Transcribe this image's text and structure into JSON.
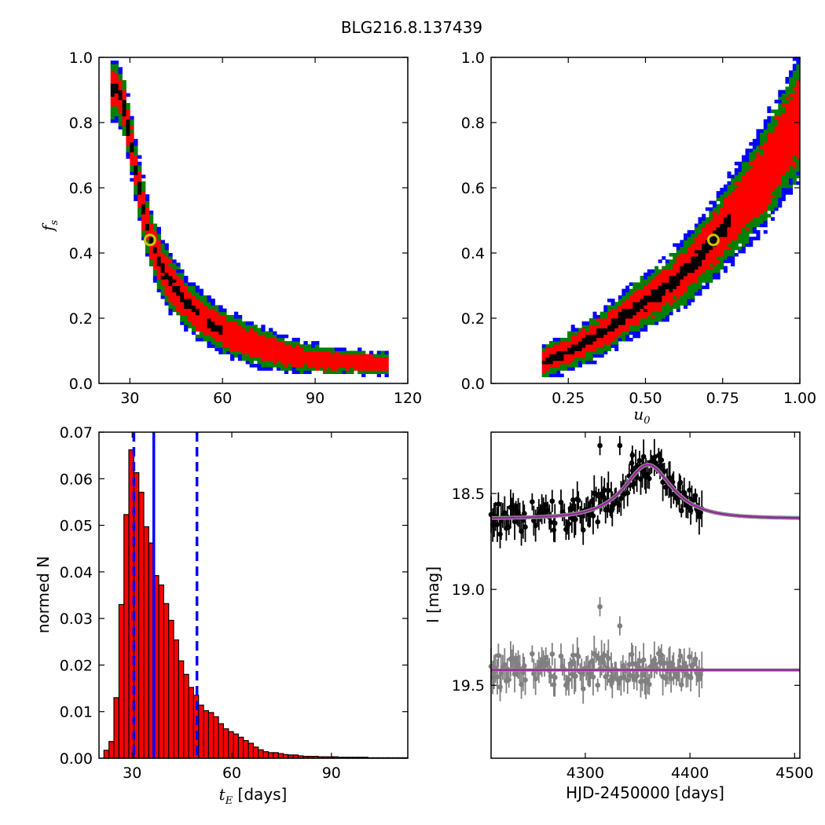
{
  "figure": {
    "title": "BLG216.8.137439"
  },
  "chart_data": [
    {
      "id": "density_tE_fs",
      "type": "heatmap",
      "xlim": [
        20,
        120
      ],
      "ylim": [
        0.0,
        1.0
      ],
      "xticks": [
        "30",
        "60",
        "90",
        "120"
      ],
      "xtick_values": [
        30,
        60,
        90,
        120
      ],
      "yticks": [
        "0.0",
        "0.2",
        "0.4",
        "0.6",
        "0.8",
        "1.0"
      ],
      "ylabel": {
        "var": "f",
        "sub": "s"
      },
      "color_levels": [
        "#0000ff",
        "#008000",
        "#ff0000",
        "#000000"
      ],
      "best_fit": {
        "x": 36.5,
        "y": 0.44
      },
      "ridge": [
        [
          26,
          0.9
        ],
        [
          28,
          0.85
        ],
        [
          30,
          0.76
        ],
        [
          32,
          0.65
        ],
        [
          34,
          0.55
        ],
        [
          36,
          0.47
        ],
        [
          38,
          0.41
        ],
        [
          40,
          0.36
        ],
        [
          44,
          0.3
        ],
        [
          48,
          0.25
        ],
        [
          54,
          0.2
        ],
        [
          60,
          0.16
        ],
        [
          70,
          0.12
        ],
        [
          80,
          0.09
        ],
        [
          95,
          0.07
        ],
        [
          112,
          0.06
        ]
      ]
    },
    {
      "id": "density_u0_fs",
      "type": "heatmap",
      "xlim": [
        0.0,
        1.0
      ],
      "ylim": [
        0.0,
        1.0
      ],
      "xticks": [
        "0.25",
        "0.50",
        "0.75",
        "1.00"
      ],
      "xtick_values": [
        0.25,
        0.5,
        0.75,
        1.0
      ],
      "yticks": [
        "0.0",
        "0.2",
        "0.4",
        "0.6",
        "0.8",
        "1.0"
      ],
      "xlabel": {
        "var": "u",
        "sub": "0"
      },
      "color_levels": [
        "#0000ff",
        "#008000",
        "#ff0000",
        "#000000"
      ],
      "best_fit": {
        "x": 0.72,
        "y": 0.44
      },
      "ridge": [
        [
          0.17,
          0.065
        ],
        [
          0.25,
          0.1
        ],
        [
          0.35,
          0.15
        ],
        [
          0.45,
          0.22
        ],
        [
          0.55,
          0.28
        ],
        [
          0.65,
          0.36
        ],
        [
          0.72,
          0.44
        ],
        [
          0.8,
          0.53
        ],
        [
          0.88,
          0.63
        ],
        [
          0.95,
          0.74
        ],
        [
          1.0,
          0.82
        ]
      ]
    },
    {
      "id": "tE_histogram",
      "type": "bar",
      "xlim": [
        20,
        113
      ],
      "ylim": [
        0.0,
        0.07
      ],
      "xticks": [
        "30",
        "60",
        "90"
      ],
      "xtick_values": [
        30,
        60,
        90
      ],
      "yticks": [
        "0.00",
        "0.01",
        "0.02",
        "0.03",
        "0.04",
        "0.05",
        "0.06",
        "0.07"
      ],
      "ylabel": "normed N",
      "xlabel": {
        "var": "t",
        "sub": "E",
        "unit": " [days]"
      },
      "bin_start": 21.5,
      "bin_width": 1.5,
      "values": [
        0.0017,
        0.0036,
        0.013,
        0.033,
        0.0523,
        0.0662,
        0.0613,
        0.0571,
        0.0497,
        0.0462,
        0.0392,
        0.0372,
        0.0332,
        0.0296,
        0.0254,
        0.0209,
        0.018,
        0.0152,
        0.0135,
        0.0114,
        0.0102,
        0.0098,
        0.0089,
        0.0074,
        0.0063,
        0.0057,
        0.0052,
        0.0045,
        0.0038,
        0.0032,
        0.0024,
        0.0018,
        0.0014,
        0.0012,
        0.0012,
        0.001,
        0.0008,
        0.0007,
        0.0007,
        0.0005,
        0.0004,
        0.0004,
        0.0004,
        0.0003,
        0.0003,
        0.0003,
        0.0003,
        0.0002,
        0.0002,
        0.0002,
        0.0002,
        0.0002,
        0.0002,
        0.0001,
        0.0001,
        0.0001,
        0.0001,
        0.0001,
        0.0001,
        0.0001,
        0.0001
      ],
      "bar_color": "#ff0000",
      "median_line": 36.5,
      "percentile_lines": [
        30.5,
        49.5
      ],
      "line_color": "#0000ff"
    },
    {
      "id": "light_curve",
      "type": "scatter",
      "xlim": [
        4210,
        4505
      ],
      "ylim": [
        19.88,
        18.18
      ],
      "xticks": [
        "4300",
        "4400",
        "4500"
      ],
      "xtick_values": [
        4300,
        4400,
        4500
      ],
      "yticks": [
        "18.5",
        "19.0",
        "19.5"
      ],
      "ytick_values": [
        18.5,
        19.0,
        19.5
      ],
      "ylabel": "I [mag]",
      "xlabel": "HJD-2450000 [days]",
      "data_range": [
        4210,
        4412
      ],
      "baseline_mag": 18.63,
      "peak_mag": 18.35,
      "peak_time": 4360,
      "residual_baseline": 19.42,
      "data_color": "#000000",
      "residual_color": "#808080",
      "model_color": "#9b1fa0",
      "outliers": [
        [
          4314,
          18.25
        ],
        [
          4333,
          18.25
        ],
        [
          4345,
          18.3
        ],
        [
          4314,
          19.09
        ],
        [
          4333,
          19.19
        ]
      ]
    }
  ]
}
